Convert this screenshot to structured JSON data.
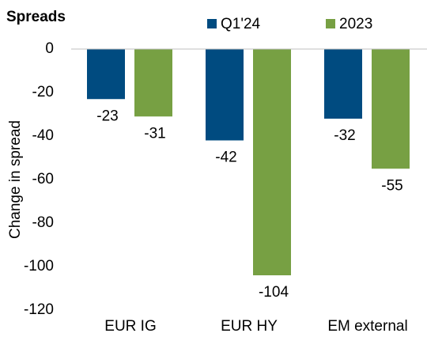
{
  "chart_data": {
    "type": "bar",
    "title": "Spreads",
    "y_label": "Change in spread",
    "categories": [
      "EUR IG",
      "EUR HY",
      "EM external"
    ],
    "series": [
      {
        "name": "Q1'24",
        "color": "#004b80",
        "values": [
          -23,
          -42,
          -32
        ]
      },
      {
        "name": "2023",
        "color": "#77a043",
        "values": [
          -31,
          -104,
          -55
        ]
      }
    ],
    "ylim": [
      -120,
      0
    ],
    "yticks": [
      0,
      -20,
      -40,
      -60,
      -80,
      -100,
      -120
    ],
    "grid": false
  }
}
